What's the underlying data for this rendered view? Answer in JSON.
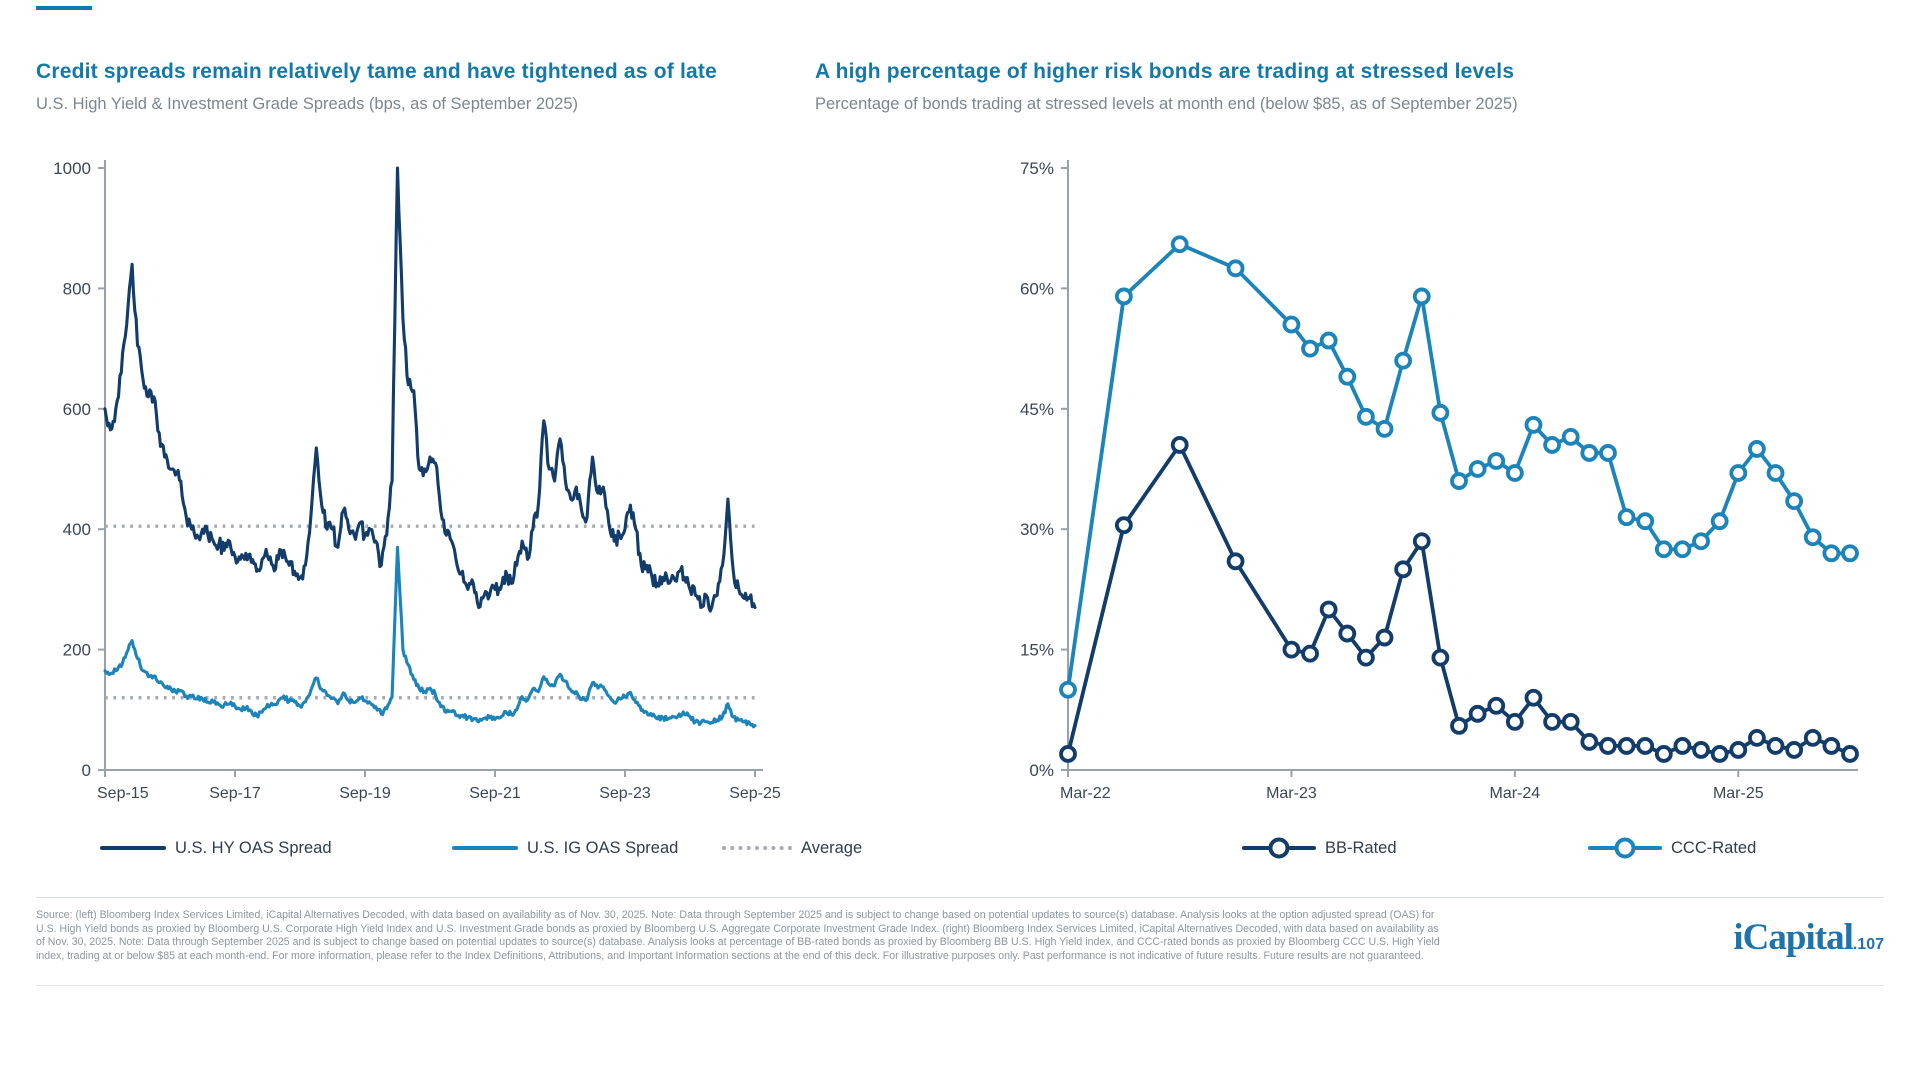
{
  "accent_color": "#1378a9",
  "colors": {
    "title": "#1379a9",
    "subtitle": "#7b8690",
    "axis": "#9aa1a8",
    "tick_label": "#3b4757",
    "average_line": "#a6abb0",
    "hy_navy": "#123c6a",
    "ig_blue": "#1b84ba",
    "logo_blue": "#1e73ad"
  },
  "chart_data": [
    {
      "type": "line",
      "title": "Credit spreads remain relatively tame and have tightened as of late",
      "subtitle": "U.S. High Yield & Investment Grade Spreads (bps, as of September 2025)",
      "ylim": [
        0,
        1000
      ],
      "yticks": [
        0,
        200,
        400,
        600,
        800,
        1000
      ],
      "yticklabels": [
        "0",
        "200",
        "400",
        "600",
        "800",
        "1000"
      ],
      "xtick_offsets": [
        0,
        24,
        48,
        72,
        96,
        120
      ],
      "xticklabels": [
        "Sep-15",
        "Sep-17",
        "Sep-19",
        "Sep-21",
        "Sep-23",
        "Sep-25"
      ],
      "x_start": "Sep-15",
      "x_end": "Sep-25",
      "x_frequency": "monthly",
      "markers": false,
      "grid": false,
      "legend_position": "bottom",
      "reference_label": "Average",
      "reference_lines": [
        {
          "name": "Average (HY)",
          "value": 405
        },
        {
          "name": "Average (IG)",
          "value": 120
        }
      ],
      "series": [
        {
          "name": "U.S. HY OAS Spread",
          "color": "#123c6a",
          "values": [
            600,
            565,
            600,
            660,
            740,
            840,
            705,
            650,
            620,
            620,
            560,
            520,
            500,
            490,
            480,
            420,
            400,
            390,
            400,
            390,
            380,
            375,
            365,
            380,
            355,
            350,
            360,
            345,
            330,
            350,
            355,
            340,
            350,
            365,
            340,
            330,
            320,
            340,
            420,
            535,
            440,
            400,
            400,
            370,
            430,
            400,
            390,
            410,
            390,
            400,
            380,
            340,
            390,
            480,
            1000,
            750,
            640,
            630,
            500,
            500,
            520,
            510,
            430,
            390,
            380,
            340,
            330,
            300,
            310,
            270,
            290,
            290,
            300,
            300,
            330,
            310,
            340,
            380,
            350,
            400,
            440,
            580,
            500,
            480,
            550,
            480,
            450,
            470,
            430,
            420,
            520,
            460,
            470,
            410,
            380,
            390,
            400,
            440,
            400,
            340,
            340,
            320,
            310,
            320,
            310,
            320,
            330,
            320,
            300,
            290,
            270,
            290,
            270,
            290,
            340,
            450,
            330,
            300,
            285,
            285,
            270
          ]
        },
        {
          "name": "U.S. IG OAS Spread",
          "color": "#1b84ba",
          "values": [
            165,
            160,
            165,
            172,
            195,
            215,
            185,
            165,
            155,
            156,
            145,
            138,
            138,
            130,
            132,
            123,
            122,
            118,
            118,
            113,
            113,
            109,
            108,
            110,
            106,
            101,
            102,
            98,
            90,
            96,
            109,
            108,
            115,
            123,
            114,
            113,
            106,
            113,
            132,
            153,
            134,
            124,
            119,
            110,
            128,
            115,
            112,
            120,
            115,
            111,
            105,
            93,
            102,
            122,
            370,
            200,
            175,
            150,
            135,
            130,
            136,
            125,
            105,
            96,
            97,
            90,
            91,
            87,
            85,
            80,
            86,
            87,
            84,
            87,
            97,
            92,
            100,
            122,
            116,
            135,
            130,
            155,
            142,
            140,
            159,
            148,
            133,
            130,
            117,
            117,
            145,
            136,
            138,
            123,
            112,
            119,
            121,
            129,
            112,
            99,
            96,
            90,
            85,
            87,
            85,
            88,
            93,
            92,
            89,
            80,
            78,
            80,
            79,
            83,
            89,
            110,
            88,
            83,
            80,
            78,
            74
          ]
        }
      ]
    },
    {
      "type": "line",
      "title": "A high percentage of higher risk bonds are trading at stressed levels",
      "subtitle": "Percentage of bonds trading at stressed levels at month end (below $85, as of September 2025)",
      "ylim": [
        0,
        75
      ],
      "yticks": [
        0,
        15,
        30,
        45,
        60,
        75
      ],
      "yticklabels": [
        "0%",
        "15%",
        "30%",
        "45%",
        "60%",
        "75%"
      ],
      "xtick_offsets": [
        0,
        12,
        24,
        36
      ],
      "xticklabels": [
        "Mar-22",
        "Mar-23",
        "Mar-24",
        "Mar-25"
      ],
      "x_frequency": "quarterly Mar-22 to Dec-22, then monthly",
      "markers": true,
      "grid": false,
      "legend_position": "bottom",
      "x_labels": [
        "Mar-22",
        "Jun-22",
        "Sep-22",
        "Dec-22",
        "Mar-23",
        "Apr-23",
        "May-23",
        "Jun-23",
        "Jul-23",
        "Aug-23",
        "Sep-23",
        "Oct-23",
        "Nov-23",
        "Dec-23",
        "Jan-24",
        "Feb-24",
        "Mar-24",
        "Apr-24",
        "May-24",
        "Jun-24",
        "Jul-24",
        "Aug-24",
        "Sep-24",
        "Oct-24",
        "Nov-24",
        "Dec-24",
        "Jan-25",
        "Feb-25",
        "Mar-25",
        "Apr-25",
        "May-25",
        "Jun-25",
        "Jul-25",
        "Aug-25",
        "Sep-25"
      ],
      "x_offsets": [
        0,
        3,
        6,
        9,
        12,
        13,
        14,
        15,
        16,
        17,
        18,
        19,
        20,
        21,
        22,
        23,
        24,
        25,
        26,
        27,
        28,
        29,
        30,
        31,
        32,
        33,
        34,
        35,
        36,
        37,
        38,
        39,
        40,
        41,
        42
      ],
      "series": [
        {
          "name": "BB-Rated",
          "color": "#123c6a",
          "values": [
            2,
            30.5,
            40.5,
            26,
            15,
            14.5,
            20,
            17,
            14,
            16.5,
            25,
            28.5,
            14,
            5.5,
            7,
            8,
            6,
            9,
            6,
            6,
            3.5,
            3,
            3,
            3,
            2,
            3,
            2.5,
            2,
            2.5,
            4,
            3,
            2.5,
            4,
            3,
            2
          ]
        },
        {
          "name": "CCC-Rated",
          "color": "#1b84ba",
          "values": [
            10,
            59,
            65.5,
            62.5,
            55.5,
            52.5,
            53.5,
            49,
            44,
            42.5,
            51,
            59,
            44.5,
            36,
            37.5,
            38.5,
            37,
            43,
            40.5,
            41.5,
            39.5,
            39.5,
            31.5,
            31,
            27.5,
            27.5,
            28.5,
            31,
            37,
            40,
            37,
            33.5,
            29,
            27,
            27
          ]
        }
      ]
    }
  ],
  "footer": {
    "lines": [
      "Source: (left) Bloomberg Index Services Limited, iCapital Alternatives Decoded, with data based on availability as of Nov. 30, 2025. Note: Data through September 2025 and is subject to change based on potential updates to source(s) database. Analysis looks at the option adjusted spread (OAS) for",
      "U.S. High Yield bonds as proxied by Bloomberg U.S. Corporate High Yield Index and U.S. Investment Grade bonds as proxied by Bloomberg U.S. Aggregate Corporate Investment Grade Index. (right) Bloomberg Index Services Limited, iCapital Alternatives Decoded, with data based on availability as",
      "of Nov. 30, 2025. Note: Data through September 2025 and is subject to change based on potential updates to source(s) database. Analysis looks at percentage of BB-rated bonds as proxied by Bloomberg BB U.S. High Yield index, and CCC-rated bonds as proxied by Bloomberg CCC U.S. High Yield",
      "index, trading at or below $85 at each month-end. For more information, please refer to the Index Definitions, Attributions, and Important Information sections at the end of this deck. For illustrative purposes only. Past performance is not indicative of future results. Future results are not guaranteed."
    ]
  },
  "logo": {
    "brand": "iCapital",
    "page_ref": ".107"
  }
}
